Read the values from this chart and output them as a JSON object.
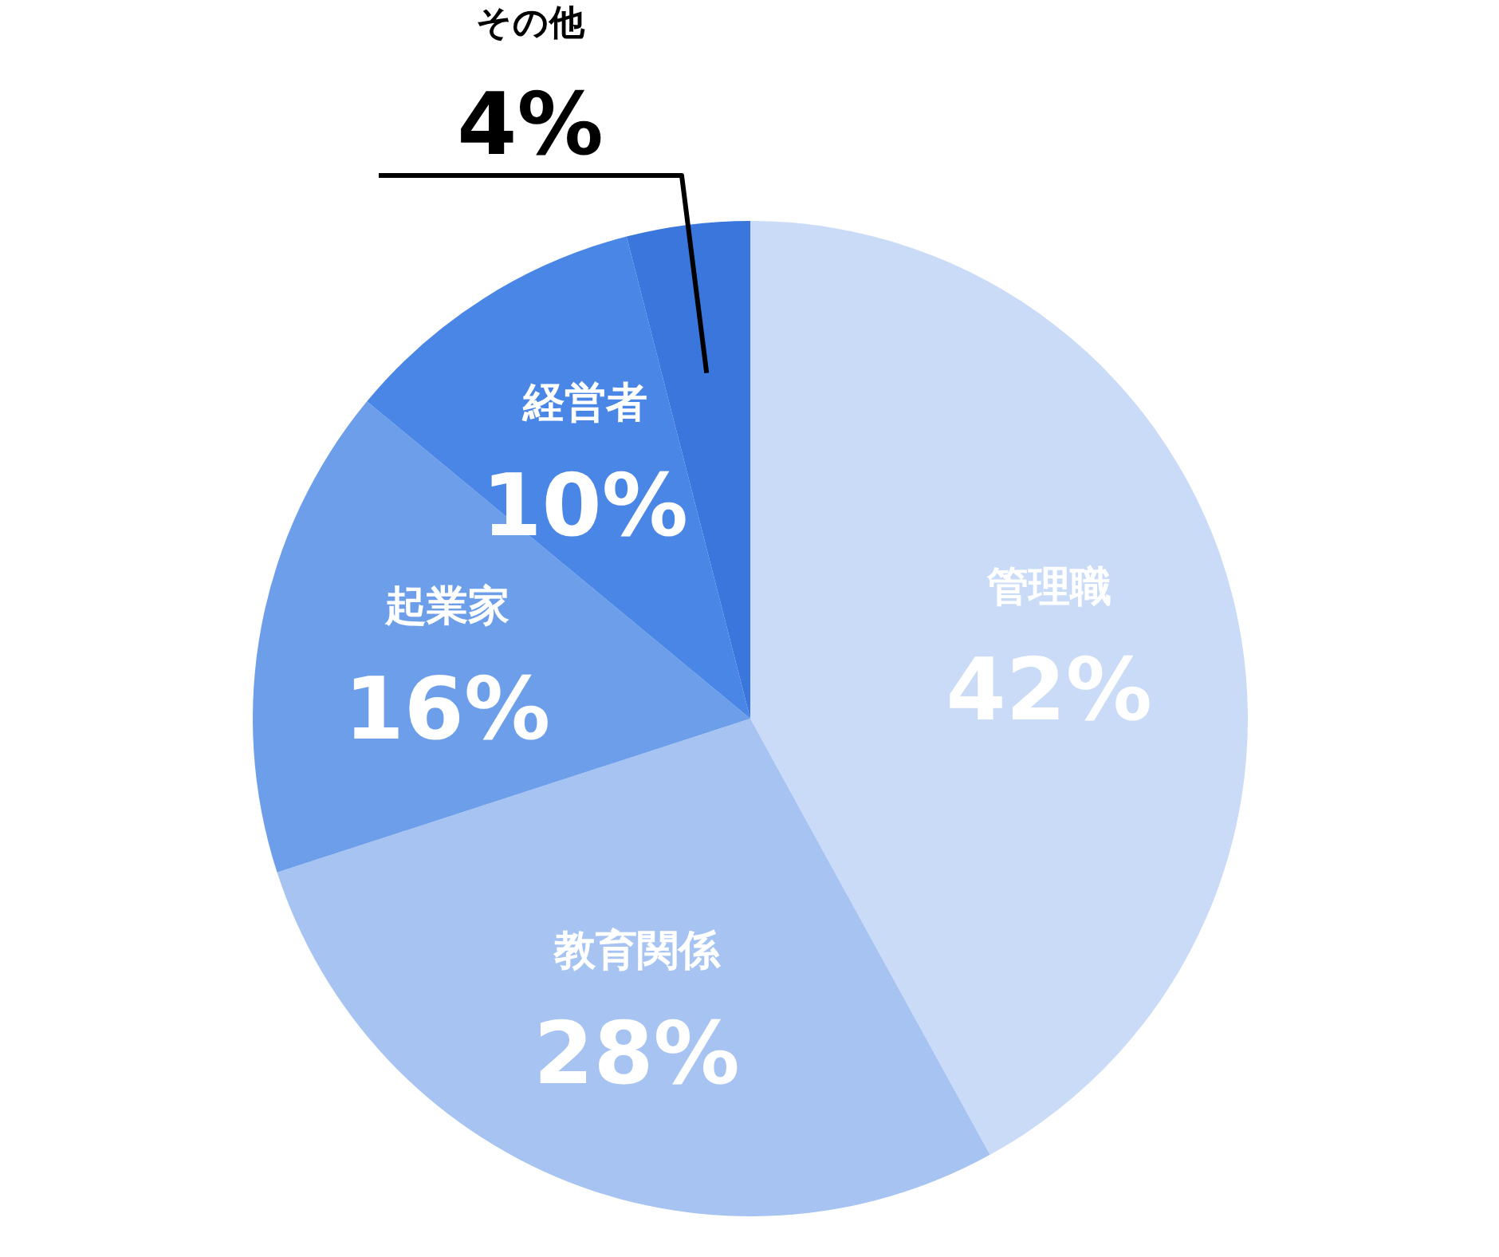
{
  "chart_data": {
    "type": "pie",
    "categories": [
      "管理職",
      "教育関係",
      "起業家",
      "経営者",
      "その他"
    ],
    "values": [
      42,
      28,
      16,
      10,
      4
    ],
    "colors": [
      "#c9dbf7",
      "#a6c3f1",
      "#6d9eea",
      "#4a86e6",
      "#3b76dc"
    ],
    "value_labels": [
      "42%",
      "28%",
      "16%",
      "10%",
      "4%"
    ]
  }
}
